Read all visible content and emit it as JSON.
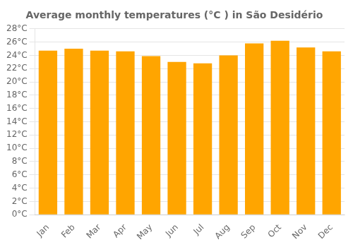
{
  "chart_data": {
    "type": "bar",
    "title": "Average monthly temperatures (°C ) in São Desidério",
    "categories": [
      "Jan",
      "Feb",
      "Mar",
      "Apr",
      "May",
      "Jun",
      "Jul",
      "Aug",
      "Sep",
      "Oct",
      "Nov",
      "Dec"
    ],
    "values": [
      24.7,
      25.0,
      24.7,
      24.6,
      23.9,
      23.0,
      22.8,
      24.0,
      25.8,
      26.2,
      25.2,
      24.6
    ],
    "color": "#FFA500",
    "ylim": [
      0,
      28
    ],
    "yticks": [
      {
        "value": 0,
        "label": "0°C"
      },
      {
        "value": 2,
        "label": "2°C"
      },
      {
        "value": 4,
        "label": "4°C"
      },
      {
        "value": 6,
        "label": "6°C"
      },
      {
        "value": 8,
        "label": "8°C"
      },
      {
        "value": 10,
        "label": "10°C"
      },
      {
        "value": 12,
        "label": "12°C"
      },
      {
        "value": 14,
        "label": "14°C"
      },
      {
        "value": 16,
        "label": "16°C"
      },
      {
        "value": 18,
        "label": "18°C"
      },
      {
        "value": 20,
        "label": "20°C"
      },
      {
        "value": 22,
        "label": "22°C"
      },
      {
        "value": 24,
        "label": "24°C"
      },
      {
        "value": 26,
        "label": "26°C"
      },
      {
        "value": 28,
        "label": "28°C"
      }
    ],
    "grid": "y"
  }
}
